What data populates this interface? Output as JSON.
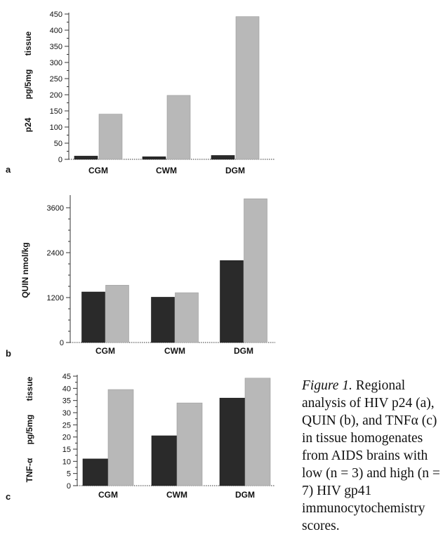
{
  "chart_data": [
    {
      "type": "bar",
      "panel_label": "a",
      "ylabel": "p24 pg/5mg tissue",
      "categories": [
        "CGM",
        "CWM",
        "DGM"
      ],
      "ylim": [
        0,
        450
      ],
      "yticks": [
        0,
        50,
        100,
        150,
        200,
        250,
        300,
        350,
        400,
        450
      ],
      "series": [
        {
          "values": [
            10,
            8,
            12
          ],
          "color": "#2a2a2a"
        },
        {
          "values": [
            140,
            198,
            442
          ],
          "color": "#b8b8b8"
        }
      ]
    },
    {
      "type": "bar",
      "panel_label": "b",
      "ylabel": "QUIN nmol/kg",
      "categories": [
        "CGM",
        "CWM",
        "DGM"
      ],
      "ylim": [
        0,
        3900
      ],
      "yticks": [
        0,
        1200,
        2400,
        3600
      ],
      "series": [
        {
          "values": [
            1350,
            1210,
            2190
          ],
          "color": "#2a2a2a"
        },
        {
          "values": [
            1530,
            1330,
            3840
          ],
          "color": "#b8b8b8"
        }
      ]
    },
    {
      "type": "bar",
      "panel_label": "c",
      "ylabel": "TNF-α pg/5mg tissue",
      "categories": [
        "CGM",
        "CWM",
        "DGM"
      ],
      "ylim": [
        0,
        45
      ],
      "yticks": [
        0,
        5,
        10,
        15,
        20,
        25,
        30,
        35,
        40,
        45
      ],
      "series": [
        {
          "values": [
            11,
            20.5,
            36
          ],
          "color": "#2a2a2a"
        },
        {
          "values": [
            39.5,
            34,
            44.2
          ],
          "color": "#b8b8b8"
        }
      ]
    }
  ],
  "caption": {
    "label": "Figure 1.",
    "text": "Regional analysis of HIV p24 (a), QUIN (b), and TNFα (c) in tissue homogenates from AIDS brains with low (n = 3) and high (n = 7) HIV gp41 immunocytochemistry scores."
  }
}
